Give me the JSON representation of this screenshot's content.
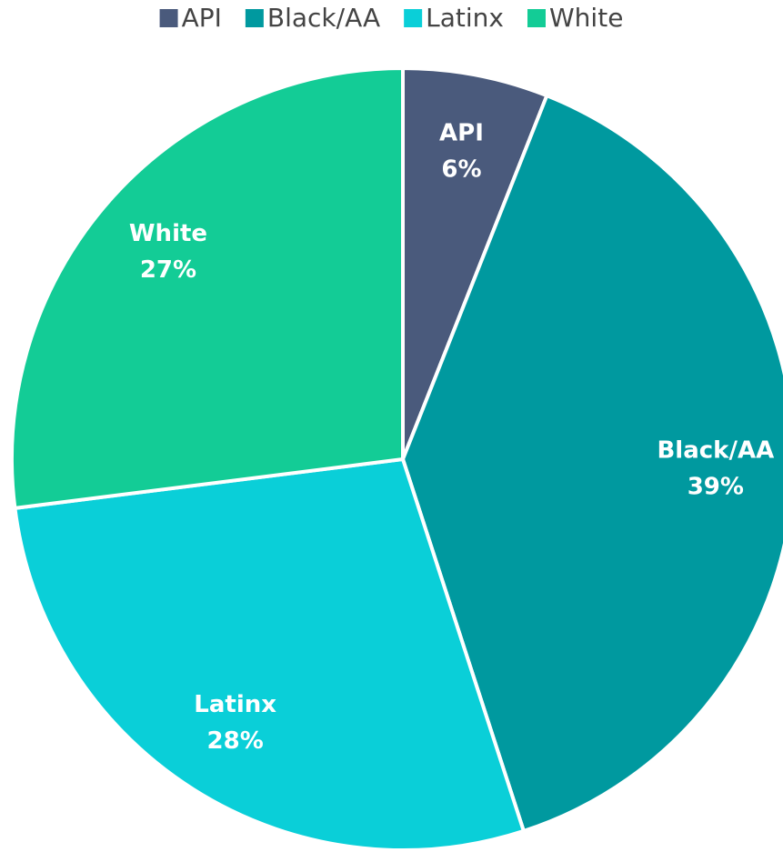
{
  "chart_data": {
    "type": "pie",
    "categories": [
      "API",
      "Black/AA",
      "Latinx",
      "White"
    ],
    "values": [
      6,
      39,
      28,
      27
    ],
    "value_labels": [
      "6%",
      "39%",
      "28%",
      "27%"
    ],
    "colors": [
      "#4a5a7c",
      "#00999f",
      "#0acfd8",
      "#13cc96"
    ],
    "legend": "top"
  }
}
